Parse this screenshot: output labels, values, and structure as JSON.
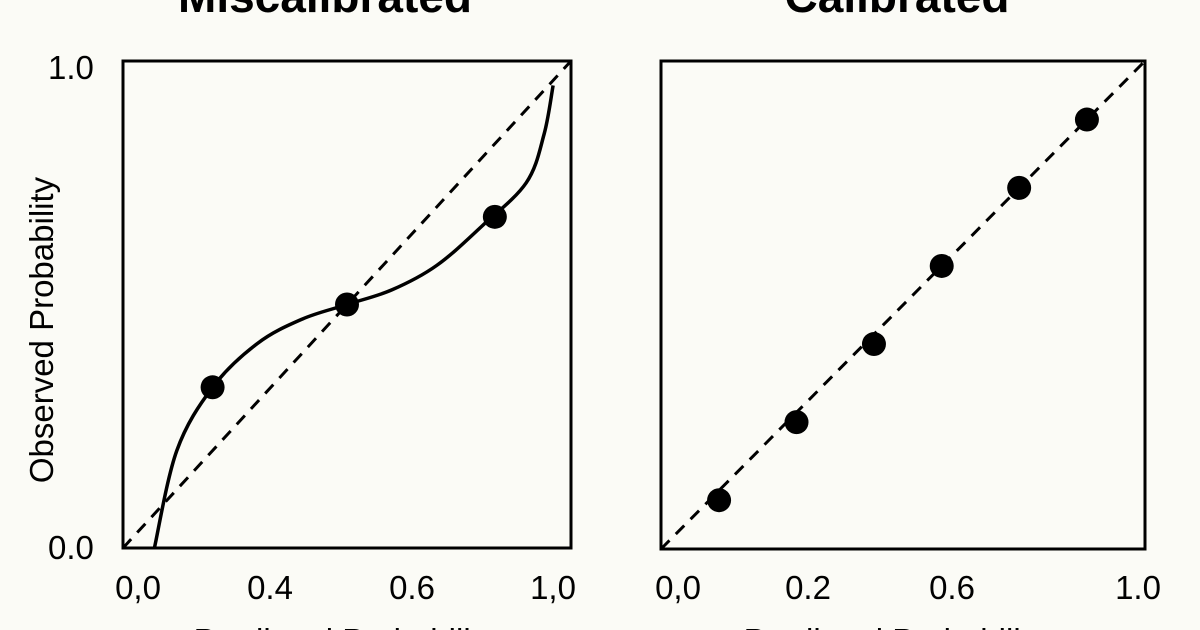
{
  "chart_data": [
    {
      "type": "line",
      "title": "Miscalibrated",
      "xlabel": "Predicted Probability",
      "ylabel": "Observed Probability",
      "xlim": [
        0,
        1
      ],
      "ylim": [
        0,
        1
      ],
      "x_tick_labels": [
        "0,0",
        "0.4",
        "0.6",
        "1,0"
      ],
      "y_tick_labels": [
        "1.0",
        "0.0"
      ],
      "reference_line": "dashed diagonal y = x",
      "series": [
        {
          "style": "solid curve",
          "x": [
            0.07,
            0.12,
            0.2,
            0.3,
            0.4,
            0.5,
            0.6,
            0.7,
            0.8,
            0.9,
            0.94,
            0.96
          ],
          "y": [
            0.0,
            0.2,
            0.33,
            0.42,
            0.47,
            0.5,
            0.53,
            0.58,
            0.66,
            0.75,
            0.85,
            0.95
          ]
        },
        {
          "style": "points",
          "x": [
            0.2,
            0.5,
            0.83
          ],
          "y": [
            0.33,
            0.5,
            0.68
          ]
        }
      ]
    },
    {
      "type": "scatter",
      "title": "Calibrated",
      "xlabel": "Predicted Probability",
      "xlim": [
        0,
        1
      ],
      "ylim": [
        0,
        1
      ],
      "x_tick_labels": [
        "0,0",
        "0.2",
        "0.6",
        "1.0"
      ],
      "reference_line": "dashed diagonal y = x",
      "series": [
        {
          "style": "points",
          "x": [
            0.12,
            0.28,
            0.44,
            0.58,
            0.74,
            0.88
          ],
          "y": [
            0.1,
            0.26,
            0.42,
            0.58,
            0.74,
            0.88
          ]
        }
      ]
    }
  ]
}
